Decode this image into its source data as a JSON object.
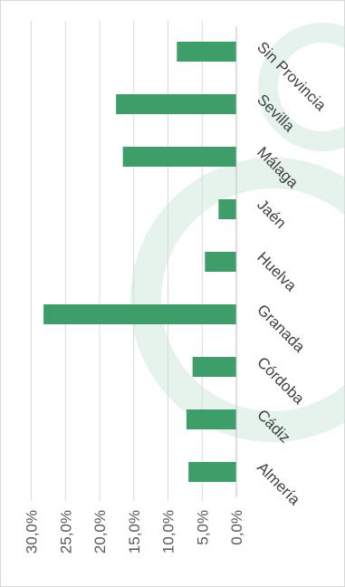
{
  "chart_data": {
    "type": "bar",
    "orientation": "horizontal-rotated",
    "categories": [
      "Almería",
      "Cádiz",
      "Córdoba",
      "Granada",
      "Huelva",
      "Jaén",
      "Málaga",
      "Sevilla",
      "Sin Provincia"
    ],
    "values": [
      7.0,
      7.3,
      6.4,
      28.2,
      4.6,
      2.6,
      16.6,
      17.6,
      8.7
    ],
    "ticks": [
      "0,0%",
      "5,0%",
      "10,0%",
      "15,0%",
      "20,0%",
      "25,0%",
      "30,0%"
    ],
    "tick_values": [
      0,
      5,
      10,
      15,
      20,
      25,
      30
    ],
    "xlim": [
      0,
      30
    ],
    "grid": true,
    "colors": {
      "bar": "#3e9e6a",
      "grid": "#d9d9d9",
      "axis": "#bfbfbf",
      "tick_text": "#595959",
      "category_text": "#404040",
      "watermark": "#e5f3ec"
    }
  }
}
